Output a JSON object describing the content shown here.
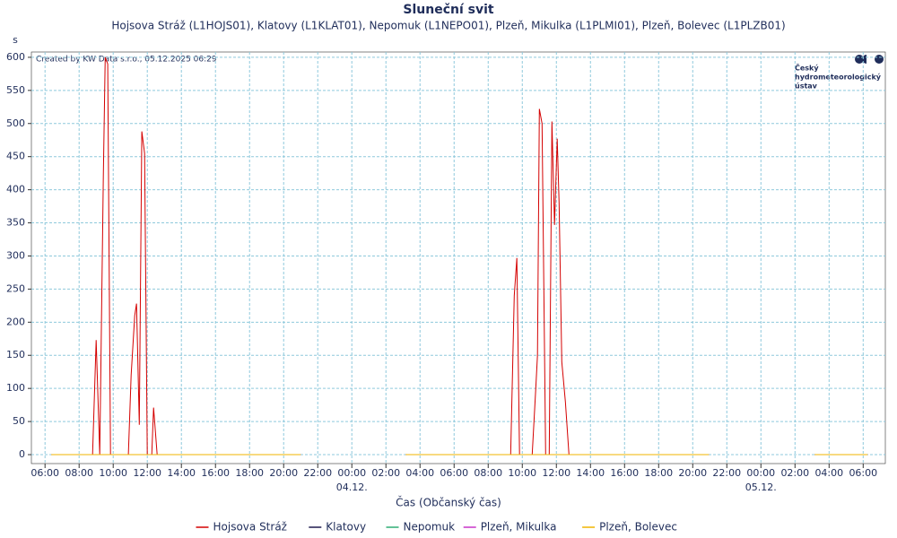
{
  "chart_data": {
    "type": "line",
    "title": "Sluneční svit",
    "subtitle": "Hojsova Stráž (L1HOJS01), Klatovy (L1KLAT01), Nepomuk (L1NEPO01), Plzeň, Mikulka (L1PLMI01), Plzeň, Bolevec (L1PLZB01)",
    "y_label": "s",
    "x_label": "Čas (Občanský čas)",
    "credit": "Created by KW Data s.r.o., 05.12.2025 06:29",
    "logo": [
      "Český",
      "hydrometeorologický",
      "ústav"
    ],
    "xlim": [
      5.2,
      55.3
    ],
    "ylim": [
      -13.5,
      608
    ],
    "grid": true,
    "legend": "bottom",
    "xticks": [
      {
        "value": 6,
        "label": "06:00"
      },
      {
        "value": 8,
        "label": "08:00"
      },
      {
        "value": 10,
        "label": "10:00"
      },
      {
        "value": 12,
        "label": "12:00"
      },
      {
        "value": 14,
        "label": "14:00"
      },
      {
        "value": 16,
        "label": "16:00"
      },
      {
        "value": 18,
        "label": "18:00"
      },
      {
        "value": 20,
        "label": "20:00"
      },
      {
        "value": 22,
        "label": "22:00"
      },
      {
        "value": 24,
        "label": "00:00"
      },
      {
        "value": 26,
        "label": "02:00"
      },
      {
        "value": 28,
        "label": "04:00"
      },
      {
        "value": 30,
        "label": "06:00"
      },
      {
        "value": 32,
        "label": "08:00"
      },
      {
        "value": 34,
        "label": "10:00"
      },
      {
        "value": 36,
        "label": "12:00"
      },
      {
        "value": 38,
        "label": "14:00"
      },
      {
        "value": 40,
        "label": "16:00"
      },
      {
        "value": 42,
        "label": "18:00"
      },
      {
        "value": 44,
        "label": "20:00"
      },
      {
        "value": 46,
        "label": "22:00"
      },
      {
        "value": 48,
        "label": "00:00"
      },
      {
        "value": 50,
        "label": "02:00"
      },
      {
        "value": 52,
        "label": "04:00"
      },
      {
        "value": 54,
        "label": "06:00"
      }
    ],
    "xdates": [
      {
        "value": 24,
        "label": "04.12."
      },
      {
        "value": 48,
        "label": "05.12."
      }
    ],
    "yticks": [
      0,
      50,
      100,
      150,
      200,
      250,
      300,
      350,
      400,
      450,
      500,
      550,
      600
    ],
    "series": [
      {
        "name": "Hojsova Stráž",
        "color": "#d40000",
        "x": [
          6.37,
          8.79,
          9.0,
          9.21,
          9.42,
          9.53,
          9.68,
          9.84,
          10.89,
          11.05,
          11.26,
          11.37,
          11.53,
          11.68,
          11.84,
          12.0,
          12.26,
          12.37,
          12.58,
          21.0,
          null,
          27.16,
          33.32,
          33.53,
          33.68,
          33.84,
          34.58,
          34.79,
          34.89,
          35.0,
          35.16,
          35.37,
          35.58,
          35.74,
          35.89,
          36.05,
          36.16,
          36.32,
          36.53,
          36.74,
          44.95,
          null,
          51.16,
          54.26
        ],
        "values": [
          0,
          0,
          173,
          0,
          420,
          600,
          590,
          0,
          0,
          120,
          210,
          228,
          45,
          488,
          455,
          0,
          0,
          71,
          0,
          0,
          null,
          0,
          0,
          240,
          297,
          0,
          0,
          100,
          150,
          522,
          500,
          0,
          0,
          503,
          347,
          477,
          380,
          140,
          80,
          0,
          0,
          null,
          0,
          0
        ]
      },
      {
        "name": "Klatovy",
        "color": "#1f1a4f",
        "x": [
          6.37,
          21.0,
          null,
          27.16,
          44.95,
          null,
          51.16,
          54.26
        ],
        "values": [
          0,
          0,
          null,
          0,
          0,
          null,
          0,
          0
        ]
      },
      {
        "name": "Nepomuk",
        "color": "#2fae74",
        "x": [
          6.37,
          21.0,
          null,
          27.16,
          44.95,
          null,
          51.16,
          54.26
        ],
        "values": [
          0,
          0,
          null,
          0,
          0,
          null,
          0,
          0
        ]
      },
      {
        "name": "Plzeň, Mikulka",
        "color": "#c832c8",
        "x": [
          6.37,
          21.0,
          null,
          27.16,
          44.95,
          null,
          51.16,
          54.26
        ],
        "values": [
          0,
          0,
          null,
          0,
          0,
          null,
          0,
          0
        ]
      },
      {
        "name": "Plzeň, Bolevec",
        "color": "#f0b400",
        "x": [
          6.37,
          21.0,
          null,
          27.16,
          44.95,
          null,
          51.16,
          54.26
        ],
        "values": [
          0,
          0,
          null,
          0,
          0,
          null,
          0,
          0
        ]
      }
    ]
  }
}
